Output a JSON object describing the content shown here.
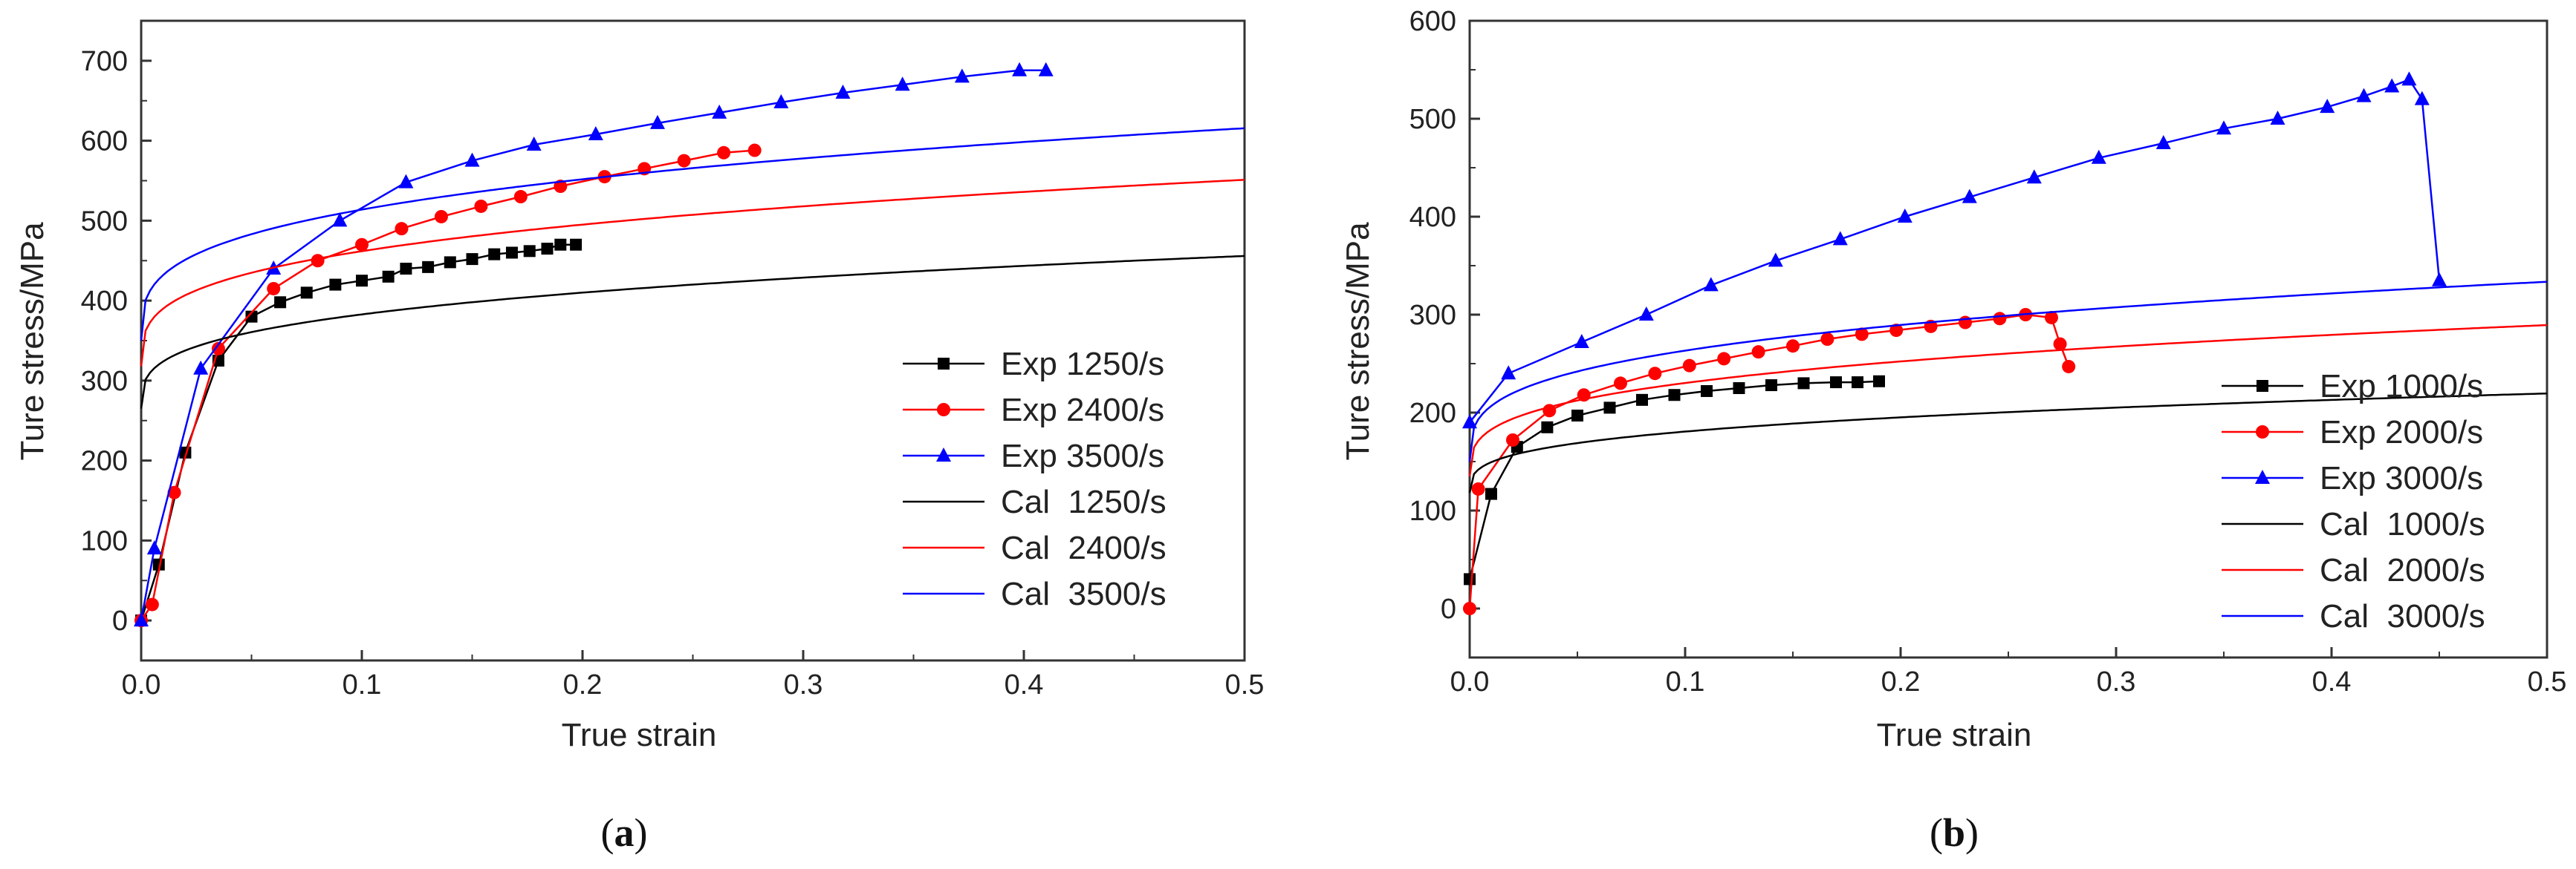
{
  "chart_data": [
    {
      "type": "line",
      "panel_label": "a",
      "xlabel": "True strain",
      "ylabel": "Ture stress/MPa",
      "xlim": [
        0,
        0.5
      ],
      "ylim": [
        -50,
        750
      ],
      "xticks": [
        "0.0",
        "0.1",
        "0.2",
        "0.3",
        "0.4",
        "0.5"
      ],
      "yticks": [
        "0",
        "100",
        "200",
        "300",
        "400",
        "500",
        "600",
        "700"
      ],
      "legend_position": "bottom-right",
      "series": [
        {
          "name": "Exp 1250/s",
          "kind": "exp",
          "color": "#000000",
          "marker": "square",
          "x": [
            0.0,
            0.008,
            0.02,
            0.035,
            0.05,
            0.063,
            0.075,
            0.088,
            0.1,
            0.112,
            0.12,
            0.13,
            0.14,
            0.15,
            0.16,
            0.168,
            0.176,
            0.184,
            0.19,
            0.197
          ],
          "y": [
            0,
            70,
            210,
            325,
            380,
            398,
            410,
            420,
            425,
            430,
            440,
            442,
            448,
            452,
            458,
            460,
            462,
            465,
            470,
            470
          ]
        },
        {
          "name": "Exp 2400/s",
          "kind": "exp",
          "color": "#ff0000",
          "marker": "circle",
          "x": [
            0.0,
            0.005,
            0.015,
            0.035,
            0.06,
            0.08,
            0.1,
            0.118,
            0.136,
            0.154,
            0.172,
            0.19,
            0.21,
            0.228,
            0.246,
            0.264,
            0.278
          ],
          "y": [
            0,
            20,
            160,
            340,
            415,
            450,
            470,
            490,
            505,
            518,
            530,
            543,
            555,
            565,
            575,
            585,
            588
          ]
        },
        {
          "name": "Exp 3500/s",
          "kind": "exp",
          "color": "#0000ff",
          "marker": "triangle",
          "x": [
            0.0,
            0.006,
            0.027,
            0.06,
            0.09,
            0.12,
            0.15,
            0.178,
            0.206,
            0.234,
            0.262,
            0.29,
            0.318,
            0.345,
            0.372,
            0.398,
            0.41
          ],
          "y": [
            0,
            90,
            315,
            440,
            500,
            548,
            575,
            595,
            608,
            622,
            635,
            648,
            660,
            670,
            680,
            688,
            688
          ]
        },
        {
          "name": "Cal  1250/s",
          "kind": "cal",
          "color": "#000000",
          "A": 265,
          "B": 235,
          "n": 0.3
        },
        {
          "name": "Cal  2400/s",
          "kind": "cal",
          "color": "#ff0000",
          "A": 318,
          "B": 287,
          "n": 0.3
        },
        {
          "name": "Cal  3500/s",
          "kind": "cal",
          "color": "#0000ff",
          "A": 350,
          "B": 327,
          "n": 0.3
        }
      ]
    },
    {
      "type": "line",
      "panel_label": "b",
      "xlabel": "True strain",
      "ylabel": "Ture stress/MPa",
      "xlim": [
        0,
        0.5
      ],
      "ylim": [
        -50,
        600
      ],
      "xticks": [
        "0.0",
        "0.1",
        "0.2",
        "0.3",
        "0.4",
        "0.5"
      ],
      "yticks": [
        "0",
        "100",
        "200",
        "300",
        "400",
        "500",
        "600"
      ],
      "legend_position": "bottom-right",
      "series": [
        {
          "name": "Exp 1000/s",
          "kind": "exp",
          "color": "#000000",
          "marker": "square",
          "x": [
            0.0,
            0.01,
            0.022,
            0.036,
            0.05,
            0.065,
            0.08,
            0.095,
            0.11,
            0.125,
            0.14,
            0.155,
            0.17,
            0.18,
            0.19
          ],
          "y": [
            30,
            117,
            165,
            185,
            197,
            205,
            213,
            218,
            222,
            225,
            228,
            230,
            231,
            231,
            232
          ]
        },
        {
          "name": "Exp 2000/s",
          "kind": "exp",
          "color": "#ff0000",
          "marker": "circle",
          "x": [
            0.0,
            0.004,
            0.02,
            0.037,
            0.053,
            0.07,
            0.086,
            0.102,
            0.118,
            0.134,
            0.15,
            0.166,
            0.182,
            0.198,
            0.214,
            0.23,
            0.246,
            0.258,
            0.27,
            0.274,
            0.278
          ],
          "y": [
            0,
            122,
            172,
            202,
            218,
            230,
            240,
            248,
            255,
            262,
            268,
            275,
            280,
            284,
            288,
            292,
            296,
            300,
            297,
            270,
            247
          ]
        },
        {
          "name": "Exp 3000/s",
          "kind": "exp",
          "color": "#0000ff",
          "marker": "triangle",
          "x": [
            0.0,
            0.018,
            0.052,
            0.082,
            0.112,
            0.142,
            0.172,
            0.202,
            0.232,
            0.262,
            0.292,
            0.322,
            0.35,
            0.375,
            0.398,
            0.415,
            0.428,
            0.436,
            0.442,
            0.45
          ],
          "y": [
            190,
            240,
            272,
            300,
            330,
            355,
            377,
            400,
            420,
            440,
            460,
            475,
            490,
            500,
            512,
            523,
            533,
            540,
            520,
            335
          ]
        },
        {
          "name": "Cal  1000/s",
          "kind": "cal",
          "color": "#000000",
          "A": 118,
          "B": 125,
          "n": 0.3
        },
        {
          "name": "Cal  2000/s",
          "kind": "cal",
          "color": "#ff0000",
          "A": 135,
          "B": 190,
          "n": 0.3
        },
        {
          "name": "Cal  3000/s",
          "kind": "cal",
          "color": "#0000ff",
          "A": 150,
          "B": 226,
          "n": 0.3
        }
      ]
    }
  ]
}
